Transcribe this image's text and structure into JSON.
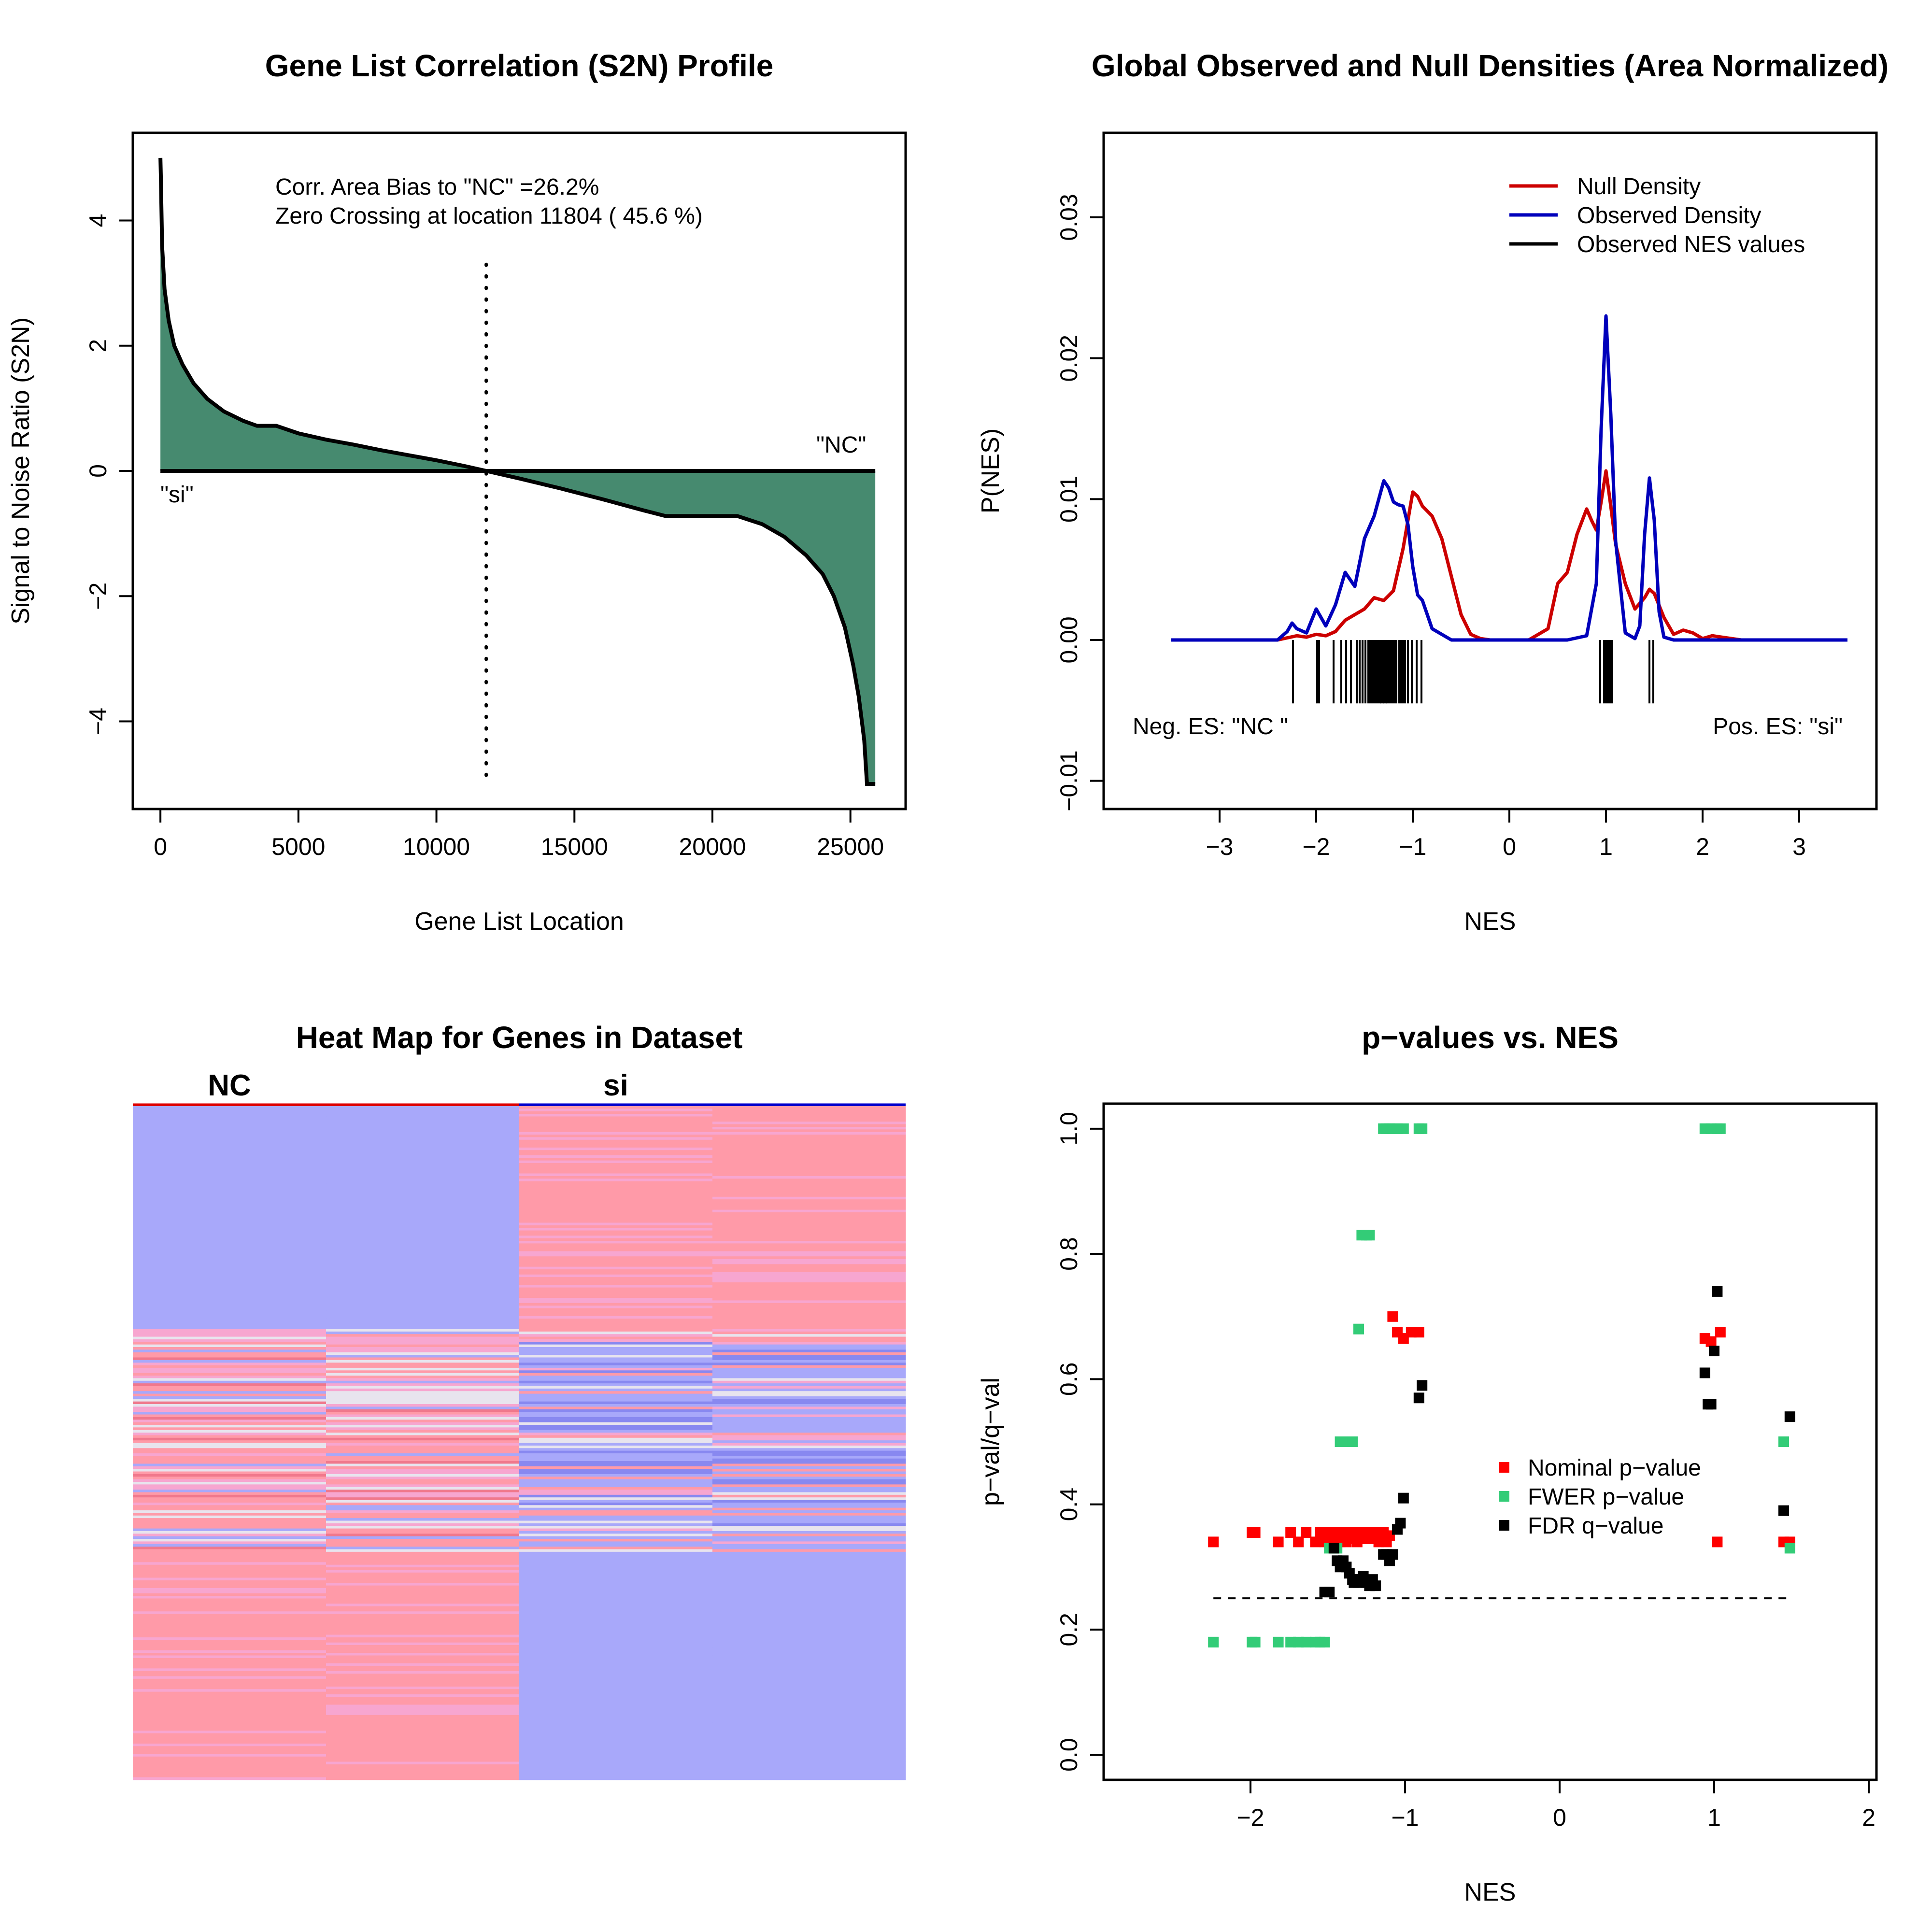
{
  "chart_data": [
    {
      "panel": "top-left",
      "type": "area",
      "title": "Gene List Correlation (S2N) Profile",
      "xlabel": "Gene List Location",
      "ylabel": "Signal to Noise Ratio (S2N)",
      "xlim": [
        -1000,
        27000
      ],
      "ylim": [
        -5.4,
        5.4
      ],
      "xticks": [
        0,
        5000,
        10000,
        15000,
        20000,
        25000
      ],
      "yticks": [
        -4,
        -2,
        0,
        2,
        4
      ],
      "fill_color": "#468a6f",
      "x": [
        0,
        20,
        60,
        150,
        300,
        500,
        800,
        1200,
        1700,
        2300,
        3000,
        3500,
        4200,
        5000,
        6000,
        7000,
        8000,
        9000,
        10000,
        11000,
        11804,
        13000,
        14500,
        16000,
        17500,
        18300,
        19000,
        20000,
        20900,
        21800,
        22600,
        23400,
        24000,
        24400,
        24800,
        25100,
        25300,
        25500,
        25600,
        25700,
        25800,
        25900
      ],
      "y": [
        5.0,
        4.6,
        3.6,
        2.9,
        2.4,
        2.0,
        1.7,
        1.4,
        1.15,
        0.95,
        0.8,
        0.72,
        0.72,
        0.6,
        0.5,
        0.42,
        0.33,
        0.25,
        0.17,
        0.08,
        0.0,
        -0.12,
        -0.28,
        -0.45,
        -0.63,
        -0.72,
        -0.72,
        -0.72,
        -0.72,
        -0.85,
        -1.05,
        -1.35,
        -1.65,
        -2.0,
        -2.5,
        -3.1,
        -3.6,
        -4.3,
        -5.0,
        -5.0,
        -5.0,
        -5.0
      ],
      "zero_crossing": 11804,
      "annotations": [
        "Corr. Area Bias to \"NC\" =26.2%",
        "Zero Crossing at location  11804  ( 45.6  %)"
      ],
      "end_labels": {
        "left": "\"si\"",
        "right": "\"NC\""
      }
    },
    {
      "panel": "top-right",
      "type": "line",
      "title": "Global Observed and Null Densities (Area Normalized)",
      "xlabel": "NES",
      "ylabel": "P(NES)",
      "xlim": [
        -4.2,
        3.8
      ],
      "ylim": [
        -0.012,
        0.036
      ],
      "xticks": [
        -3,
        -2,
        -1,
        0,
        1,
        2,
        3
      ],
      "yticks": [
        -0.01,
        0.0,
        0.01,
        0.02,
        0.03
      ],
      "ytick_labels": [
        "−0.01",
        "0.00",
        "0.01",
        "0.02",
        "0.03"
      ],
      "legend": "top-right",
      "series": [
        {
          "name": "Null Density",
          "color": "#cc0000",
          "x": [
            -3.5,
            -2.6,
            -2.4,
            -2.2,
            -2.1,
            -2.0,
            -1.9,
            -1.8,
            -1.7,
            -1.6,
            -1.5,
            -1.4,
            -1.3,
            -1.2,
            -1.1,
            -1.0,
            -0.95,
            -0.9,
            -0.8,
            -0.7,
            -0.6,
            -0.5,
            -0.4,
            -0.3,
            -0.2,
            0.2,
            0.4,
            0.5,
            0.6,
            0.7,
            0.8,
            0.85,
            0.9,
            0.95,
            1.0,
            1.05,
            1.1,
            1.2,
            1.3,
            1.4,
            1.45,
            1.5,
            1.6,
            1.7,
            1.8,
            1.9,
            2.0,
            2.1,
            2.2,
            2.4,
            3.5
          ],
          "y": [
            0.0,
            0.0,
            0.0,
            0.0003,
            0.0002,
            0.0004,
            0.0003,
            0.0006,
            0.0014,
            0.0018,
            0.0022,
            0.003,
            0.0028,
            0.0035,
            0.0065,
            0.0105,
            0.0102,
            0.0095,
            0.0088,
            0.0072,
            0.0045,
            0.0018,
            0.0004,
            0.0001,
            0.0,
            0.0,
            0.0008,
            0.004,
            0.0048,
            0.0075,
            0.0093,
            0.0085,
            0.0078,
            0.0098,
            0.012,
            0.0095,
            0.0068,
            0.004,
            0.0022,
            0.003,
            0.0036,
            0.0033,
            0.0016,
            0.0004,
            0.0007,
            0.0005,
            0.0001,
            0.0003,
            0.0002,
            0.0,
            0.0
          ]
        },
        {
          "name": "Observed Density",
          "color": "#0000bb",
          "x": [
            -3.5,
            -2.4,
            -2.3,
            -2.25,
            -2.2,
            -2.1,
            -2.0,
            -1.9,
            -1.8,
            -1.7,
            -1.6,
            -1.5,
            -1.4,
            -1.3,
            -1.25,
            -1.2,
            -1.15,
            -1.1,
            -1.05,
            -1.0,
            -0.95,
            -0.9,
            -0.8,
            -0.6,
            0.6,
            0.8,
            0.9,
            0.95,
            1.0,
            1.05,
            1.1,
            1.2,
            1.3,
            1.35,
            1.4,
            1.45,
            1.5,
            1.55,
            1.6,
            1.7,
            3.5
          ],
          "y": [
            0.0,
            0.0,
            0.0006,
            0.0012,
            0.0008,
            0.0005,
            0.0022,
            0.001,
            0.0025,
            0.0048,
            0.0038,
            0.0072,
            0.0088,
            0.0113,
            0.0108,
            0.0098,
            0.0096,
            0.0095,
            0.0082,
            0.0052,
            0.0032,
            0.0028,
            0.0008,
            0.0,
            0.0,
            0.0003,
            0.004,
            0.015,
            0.023,
            0.016,
            0.007,
            0.0005,
            0.0001,
            0.001,
            0.0075,
            0.0115,
            0.0085,
            0.002,
            0.0002,
            0.0,
            0.0
          ]
        }
      ],
      "legend_entries": [
        "Null Density",
        "Observed Density",
        "Observed NES values"
      ],
      "observed_nes": [
        -2.24,
        -1.99,
        -1.97,
        -1.82,
        -1.74,
        -1.69,
        -1.64,
        -1.58,
        -1.55,
        -1.52,
        -1.49,
        -1.46,
        -1.44,
        -1.42,
        -1.4,
        -1.38,
        -1.36,
        -1.34,
        -1.33,
        -1.31,
        -1.3,
        -1.28,
        -1.27,
        -1.25,
        -1.23,
        -1.21,
        -1.19,
        -1.17,
        -1.14,
        -1.12,
        -1.1,
        -1.08,
        -1.05,
        -1.01,
        -0.96,
        -0.91,
        0.94,
        0.98,
        1.0,
        1.02,
        1.04,
        1.06,
        1.45,
        1.49
      ],
      "annotations": {
        "left": "Neg. ES: \"NC \"",
        "right": "Pos. ES: \"si\""
      }
    },
    {
      "panel": "bottom-left",
      "type": "heatmap",
      "title": "Heat Map for Genes in Dataset",
      "group_labels": [
        "NC",
        "si"
      ],
      "group_colors": [
        "#dd0000",
        "#0000cc"
      ],
      "columns": 4,
      "palette": {
        "high": "#ff9aa8",
        "low": "#a8a8fa",
        "neutral": "#e8e4ee",
        "pink": "#f7a6d0",
        "dark_red": "#f0788c",
        "dark_blue": "#8888f0"
      }
    },
    {
      "panel": "bottom-right",
      "type": "scatter",
      "title": "p−values vs. NES",
      "xlabel": "NES",
      "ylabel": "p−val/q−val",
      "xlim": [
        -2.95,
        2.05
      ],
      "ylim": [
        -0.04,
        1.04
      ],
      "xticks": [
        -2,
        -1,
        0,
        1,
        2
      ],
      "yticks": [
        0.0,
        0.2,
        0.4,
        0.6,
        0.8,
        1.0
      ],
      "ytick_labels": [
        "0.0",
        "0.2",
        "0.4",
        "0.6",
        "0.8",
        "1.0"
      ],
      "threshold": 0.25,
      "legend": "center-right",
      "series": [
        {
          "name": "Nominal p−value",
          "color": "#ff0000",
          "x": [
            -2.24,
            -1.99,
            -1.97,
            -1.82,
            -1.74,
            -1.69,
            -1.64,
            -1.58,
            -1.55,
            -1.52,
            -1.49,
            -1.46,
            -1.44,
            -1.42,
            -1.4,
            -1.38,
            -1.36,
            -1.34,
            -1.33,
            -1.31,
            -1.3,
            -1.28,
            -1.27,
            -1.25,
            -1.23,
            -1.21,
            -1.19,
            -1.17,
            -1.14,
            -1.12,
            -1.1,
            -1.08,
            -1.05,
            -1.01,
            -0.96,
            -0.91,
            0.94,
            0.98,
            1.02,
            1.04,
            1.45,
            1.49
          ],
          "y": [
            0.34,
            0.355,
            0.355,
            0.34,
            0.355,
            0.34,
            0.355,
            0.34,
            0.355,
            0.34,
            0.355,
            0.34,
            0.355,
            0.34,
            0.355,
            0.34,
            0.355,
            0.345,
            0.35,
            0.34,
            0.355,
            0.345,
            0.35,
            0.355,
            0.345,
            0.35,
            0.355,
            0.34,
            0.355,
            0.34,
            0.35,
            0.7,
            0.675,
            0.665,
            0.675,
            0.675,
            0.665,
            0.66,
            0.34,
            0.675,
            0.34,
            0.34
          ]
        },
        {
          "name": "FWER p−value",
          "color": "#33cc77",
          "x": [
            -2.24,
            -1.99,
            -1.97,
            -1.82,
            -1.74,
            -1.69,
            -1.64,
            -1.58,
            -1.55,
            -1.52,
            -1.49,
            -1.46,
            -1.44,
            -1.42,
            -1.4,
            -1.38,
            -1.36,
            -1.34,
            -1.3,
            -1.28,
            -1.25,
            -1.23,
            -1.14,
            -1.12,
            -1.1,
            -1.08,
            -1.05,
            -1.01,
            -0.91,
            -0.89,
            0.94,
            0.98,
            1.02,
            1.04,
            1.45,
            1.49
          ],
          "y": [
            0.18,
            0.18,
            0.18,
            0.18,
            0.18,
            0.18,
            0.18,
            0.18,
            0.18,
            0.18,
            0.33,
            0.33,
            0.33,
            0.5,
            0.5,
            0.5,
            0.5,
            0.5,
            0.68,
            0.83,
            0.83,
            0.83,
            1.0,
            1.0,
            1.0,
            1.0,
            1.0,
            1.0,
            1.0,
            1.0,
            1.0,
            1.0,
            1.0,
            1.0,
            0.5,
            0.33
          ]
        },
        {
          "name": "FDR q−value",
          "color": "#000000",
          "x": [
            -1.52,
            -1.49,
            -1.46,
            -1.44,
            -1.42,
            -1.4,
            -1.38,
            -1.36,
            -1.34,
            -1.33,
            -1.31,
            -1.3,
            -1.28,
            -1.27,
            -1.25,
            -1.23,
            -1.21,
            -1.19,
            -1.14,
            -1.12,
            -1.1,
            -1.08,
            -1.05,
            -1.03,
            -1.01,
            -0.91,
            -0.89,
            0.94,
            0.96,
            0.98,
            1.0,
            1.02,
            1.45,
            1.49
          ],
          "y": [
            0.26,
            0.26,
            0.33,
            0.31,
            0.3,
            0.31,
            0.3,
            0.29,
            0.28,
            0.275,
            0.28,
            0.275,
            0.28,
            0.285,
            0.275,
            0.27,
            0.28,
            0.27,
            0.32,
            0.32,
            0.31,
            0.32,
            0.36,
            0.37,
            0.41,
            0.57,
            0.59,
            0.61,
            0.56,
            0.56,
            0.645,
            0.74,
            0.39,
            0.54
          ]
        }
      ]
    }
  ]
}
